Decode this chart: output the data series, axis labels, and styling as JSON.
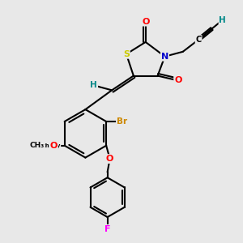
{
  "background_color": "#e8e8e8",
  "atom_colors": {
    "S": "#cccc00",
    "N": "#0000cc",
    "O": "#ff0000",
    "Br": "#cc8800",
    "F": "#ff00ff",
    "H": "#008888",
    "C": "#000000"
  },
  "bond_color": "#000000",
  "bond_width": 1.5,
  "fig_bg": "#e8e8e8"
}
